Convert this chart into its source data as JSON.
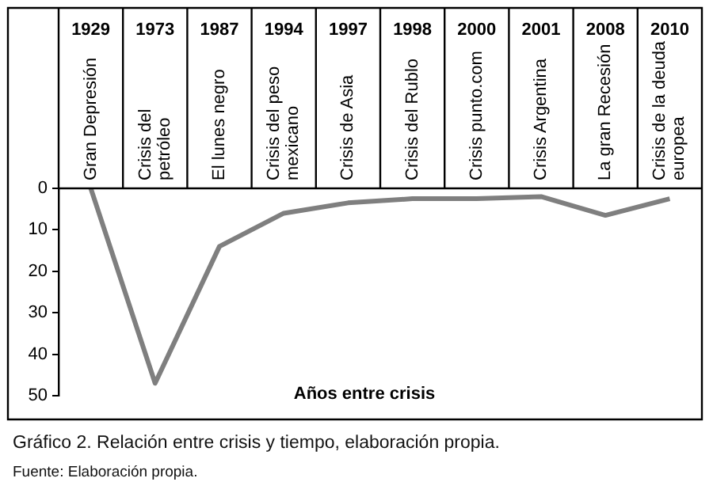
{
  "chart_data": {
    "type": "line",
    "title": "Gráfico 2.  Relación entre crisis y tiempo, elaboración propia.",
    "xlabel": "Años entre crisis",
    "annotations": [
      "Fuente: Elaboración propia."
    ],
    "categories": [
      "1929\nGran Depresión",
      "1973\nCrisis del\npetróleo",
      "1987\nEl lunes negro",
      "1994\nCrisis del peso\nmexicano",
      "1997\nCrisis de Asia",
      "1998\nCrisis del Rublo",
      "2000\nCrisis punto.com",
      "2001\nCrisis Argentina",
      "2008\nLa gran Recesión",
      "2010\nCrisis de la deuda\neuropea"
    ],
    "series": [
      {
        "color": "#7f7f7f",
        "values": [
          0,
          47,
          14,
          6,
          3.5,
          2.5,
          2.5,
          2,
          6.5,
          2.5
        ]
      }
    ],
    "ylim": [
      50,
      0
    ],
    "yticks": [
      0,
      10,
      20,
      30,
      40,
      50
    ],
    "marker": "none",
    "line_style": "solid"
  }
}
